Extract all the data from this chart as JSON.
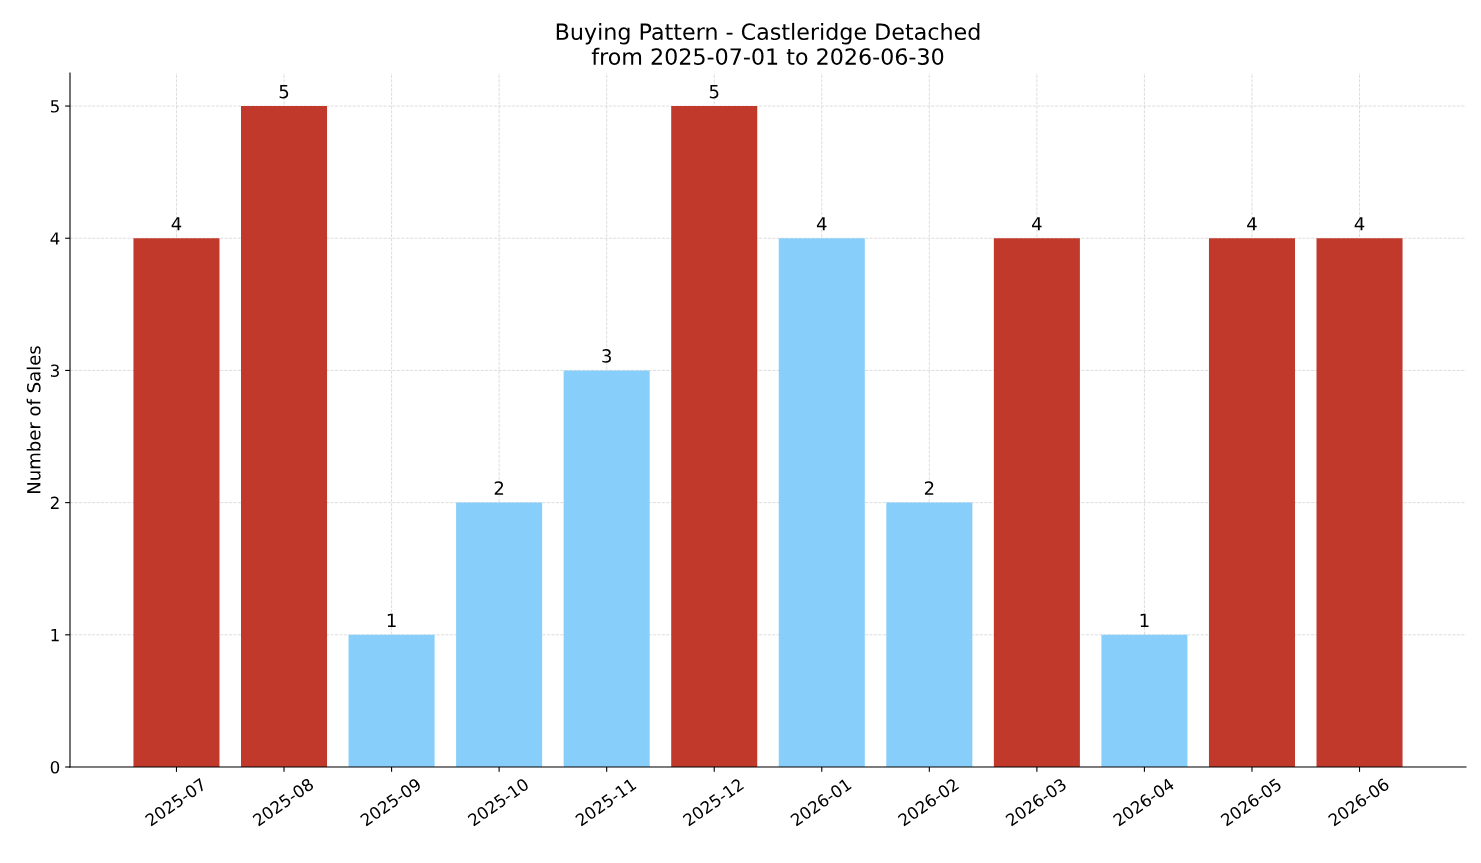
{
  "chart_data": {
    "type": "bar",
    "title": "Buying Pattern - Castleridge Detached\nfrom 2025-07-01 to 2026-06-30",
    "ylabel": "Number of Sales",
    "categories": [
      "2025-07",
      "2025-08",
      "2025-09",
      "2025-10",
      "2025-11",
      "2025-12",
      "2026-01",
      "2026-02",
      "2026-03",
      "2026-04",
      "2026-05",
      "2026-06"
    ],
    "values": [
      4,
      5,
      1,
      2,
      3,
      5,
      4,
      2,
      4,
      1,
      4,
      4
    ],
    "colors": [
      "#c0392b",
      "#c0392b",
      "#87cefa",
      "#87cefa",
      "#87cefa",
      "#c0392b",
      "#87cefa",
      "#87cefa",
      "#c0392b",
      "#87cefa",
      "#c0392b",
      "#c0392b"
    ],
    "ylim": [
      0,
      5.25
    ],
    "yticks": [
      0,
      1,
      2,
      3,
      4,
      5
    ],
    "grid": true,
    "data_labels": true
  }
}
